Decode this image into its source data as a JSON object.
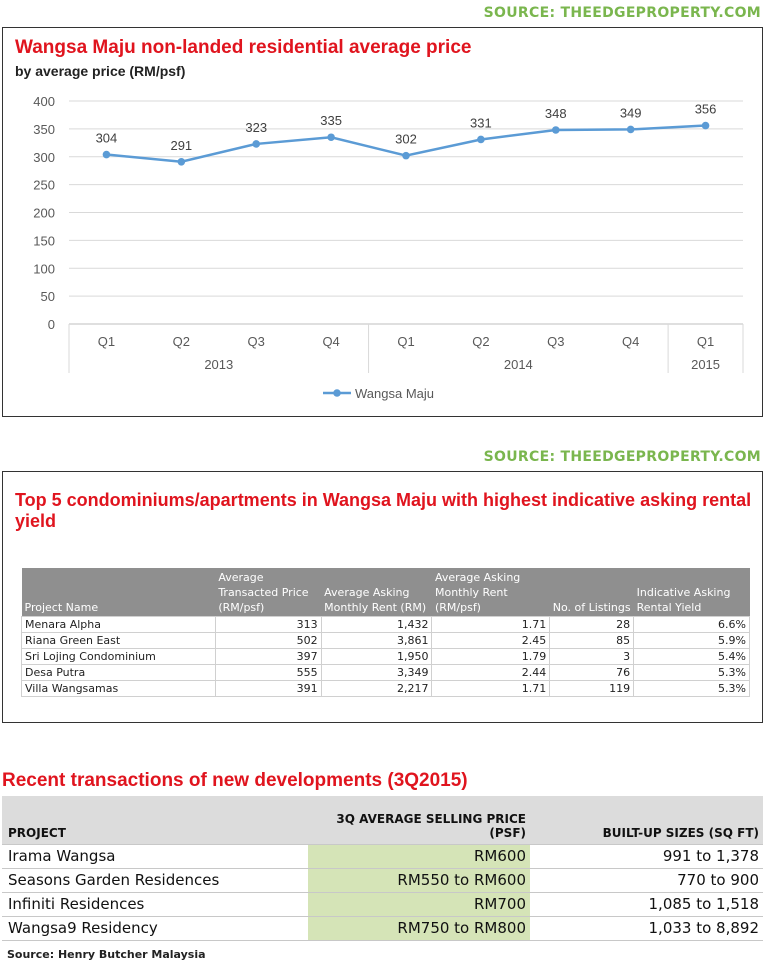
{
  "sources": {
    "top": "SOURCE: THEEDGEPROPERTY.COM",
    "middle": "SOURCE: THEEDGEPROPERTY.COM"
  },
  "chart_data": {
    "type": "line",
    "title": "Wangsa Maju non-landed residential average price",
    "subtitle": "by average price (RM/psf)",
    "categories": [
      "Q1",
      "Q2",
      "Q3",
      "Q4",
      "Q1",
      "Q2",
      "Q3",
      "Q4",
      "Q1"
    ],
    "groups": [
      {
        "label": "2013",
        "count": 4
      },
      {
        "label": "2014",
        "count": 4
      },
      {
        "label": "2015",
        "count": 1
      }
    ],
    "series": [
      {
        "name": "Wangsa Maju",
        "values": [
          304,
          291,
          323,
          335,
          302,
          331,
          348,
          349,
          356
        ],
        "color": "#5b9bd5"
      }
    ],
    "yticks": [
      0,
      50,
      100,
      150,
      200,
      250,
      300,
      350,
      400
    ],
    "ylim": [
      0,
      400
    ],
    "data_labels": true,
    "grid": true,
    "legend": "bottom"
  },
  "rental_table": {
    "title": "Top 5 condominiums/apartments in Wangsa Maju with highest indicative asking rental yield",
    "headers": [
      "Project Name",
      "Average Transacted Price (RM/psf)",
      "Average Asking Monthly Rent (RM)",
      "Average Asking Monthly Rent (RM/psf)",
      "No. of Listings",
      "Indicative Asking Rental Yield"
    ],
    "rows": [
      [
        "Menara Alpha",
        "313",
        "1,432",
        "1.71",
        "28",
        "6.6%"
      ],
      [
        "Riana Green East",
        "502",
        "3,861",
        "2.45",
        "85",
        "5.9%"
      ],
      [
        "Sri Lojing Condominium",
        "397",
        "1,950",
        "1.79",
        "3",
        "5.4%"
      ],
      [
        "Desa Putra",
        "555",
        "3,349",
        "2.44",
        "76",
        "5.3%"
      ],
      [
        "Villa Wangsamas",
        "391",
        "2,217",
        "1.71",
        "119",
        "5.3%"
      ]
    ]
  },
  "recent_table": {
    "title": "Recent transactions of new developments (3Q2015)",
    "headers": [
      "PROJECT",
      "3Q AVERAGE SELLING PRICE (PSF)",
      "BUILT-UP SIZES (SQ FT)"
    ],
    "rows": [
      [
        "Irama Wangsa",
        "RM600",
        "991 to 1,378"
      ],
      [
        "Seasons Garden Residences",
        "RM550 to RM600",
        "770 to 900"
      ],
      [
        "Infiniti Residences",
        "RM700",
        "1,085 to 1,518"
      ],
      [
        "Wangsa9 Residency",
        "RM750 to RM800",
        "1,033 to 8,892"
      ]
    ],
    "source": "Source: Henry Butcher Malaysia",
    "highlight_color": "#d5e4b7"
  }
}
